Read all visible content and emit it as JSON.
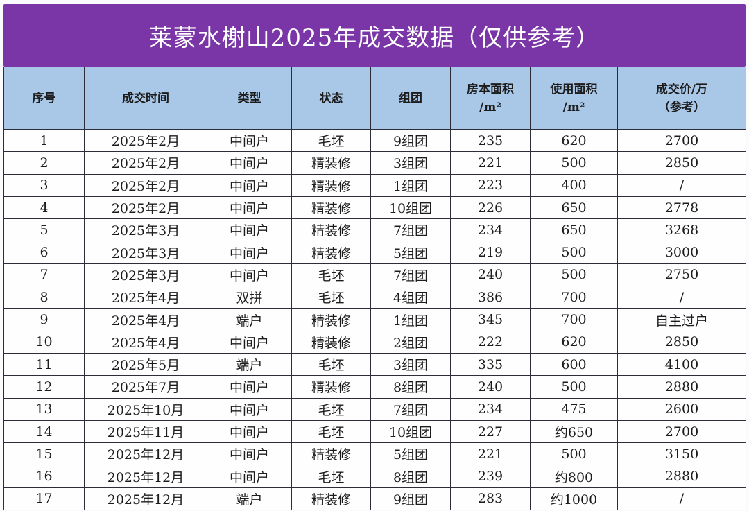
{
  "title": "莱蒙水榭山2025年成交数据（仅供参考）",
  "columns": [
    {
      "lines": [
        "序号"
      ]
    },
    {
      "lines": [
        "成交时间"
      ]
    },
    {
      "lines": [
        "类型"
      ]
    },
    {
      "lines": [
        "状态"
      ]
    },
    {
      "lines": [
        "组团"
      ]
    },
    {
      "lines": [
        "房本面积",
        "/m²"
      ]
    },
    {
      "lines": [
        "使用面积",
        "/m²"
      ]
    },
    {
      "lines": [
        "成交价/万",
        "（参考）"
      ]
    }
  ],
  "rows": [
    [
      "1",
      "2025年2月",
      "中间户",
      "毛坯",
      "9组团",
      "235",
      "620",
      "2700"
    ],
    [
      "2",
      "2025年2月",
      "中间户",
      "精装修",
      "3组团",
      "221",
      "500",
      "2850"
    ],
    [
      "3",
      "2025年2月",
      "中间户",
      "精装修",
      "1组团",
      "223",
      "400",
      "/"
    ],
    [
      "4",
      "2025年2月",
      "中间户",
      "精装修",
      "10组团",
      "226",
      "650",
      "2778"
    ],
    [
      "5",
      "2025年3月",
      "中间户",
      "精装修",
      "7组团",
      "234",
      "650",
      "3268"
    ],
    [
      "6",
      "2025年3月",
      "中间户",
      "精装修",
      "5组团",
      "219",
      "500",
      "3000"
    ],
    [
      "7",
      "2025年3月",
      "中间户",
      "毛坯",
      "7组团",
      "240",
      "500",
      "2750"
    ],
    [
      "8",
      "2025年4月",
      "双拼",
      "毛坯",
      "4组团",
      "386",
      "700",
      "/"
    ],
    [
      "9",
      "2025年4月",
      "端户",
      "精装修",
      "1组团",
      "345",
      "700",
      "自主过户"
    ],
    [
      "10",
      "2025年4月",
      "中间户",
      "精装修",
      "2组团",
      "222",
      "620",
      "2850"
    ],
    [
      "11",
      "2025年5月",
      "端户",
      "毛坯",
      "3组团",
      "335",
      "600",
      "4100"
    ],
    [
      "12",
      "2025年7月",
      "中间户",
      "精装修",
      "8组团",
      "240",
      "500",
      "2880"
    ],
    [
      "13",
      "2025年10月",
      "中间户",
      "毛坯",
      "7组团",
      "234",
      "475",
      "2600"
    ],
    [
      "14",
      "2025年11月",
      "中间户",
      "毛坯",
      "10组团",
      "227",
      "约650",
      "2700"
    ],
    [
      "15",
      "2025年12月",
      "中间户",
      "精装修",
      "5组团",
      "221",
      "500",
      "3150"
    ],
    [
      "16",
      "2025年12月",
      "中间户",
      "毛坯",
      "8组团",
      "239",
      "约800",
      "2880"
    ],
    [
      "17",
      "2025年12月",
      "端户",
      "精装修",
      "9组团",
      "283",
      "约1000",
      "/"
    ]
  ]
}
